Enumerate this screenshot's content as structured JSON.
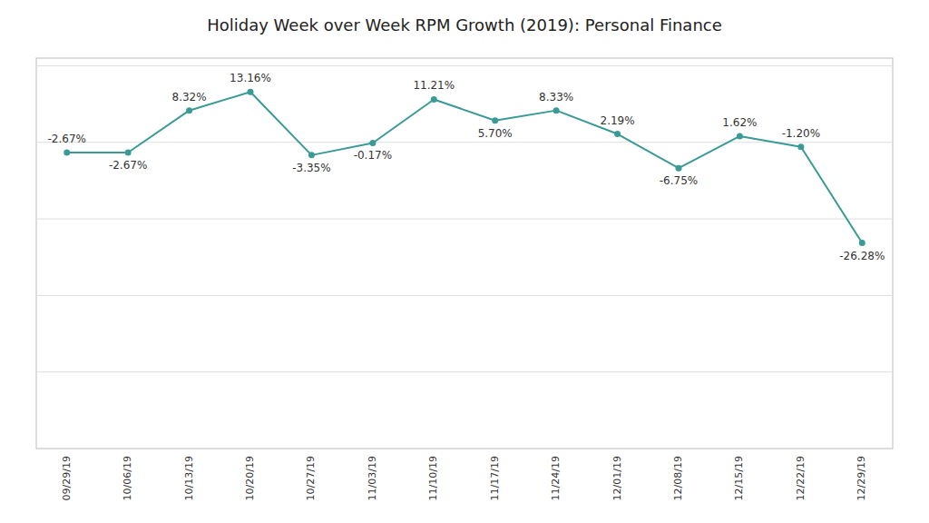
{
  "chart_data": {
    "type": "line",
    "title": "Holiday Week over Week RPM Growth (2019): Personal Finance",
    "categories": [
      "09/29/19",
      "10/06/19",
      "10/13/19",
      "10/20/19",
      "10/27/19",
      "11/03/19",
      "11/10/19",
      "11/17/19",
      "11/24/19",
      "12/01/19",
      "12/08/19",
      "12/15/19",
      "12/22/19",
      "12/29/19"
    ],
    "values": [
      -2.67,
      -2.67,
      8.32,
      13.16,
      -3.35,
      -0.17,
      11.21,
      5.7,
      8.33,
      2.19,
      -6.75,
      1.62,
      -1.2,
      -26.28
    ],
    "value_labels": [
      "-2.67%",
      "-2.67%",
      "8.32%",
      "13.16%",
      "-3.35%",
      "-0.17%",
      "11.21%",
      "5.70%",
      "8.33%",
      "2.19%",
      "-6.75%",
      "1.62%",
      "-1.20%",
      "-26.28%"
    ],
    "color": "#3a9a96",
    "marker": "circle",
    "ylim": [
      -80,
      22
    ],
    "yticks": [
      -60,
      -40,
      -20,
      0,
      20
    ],
    "grid": true,
    "data_labels": true,
    "tick_labels": "x"
  }
}
